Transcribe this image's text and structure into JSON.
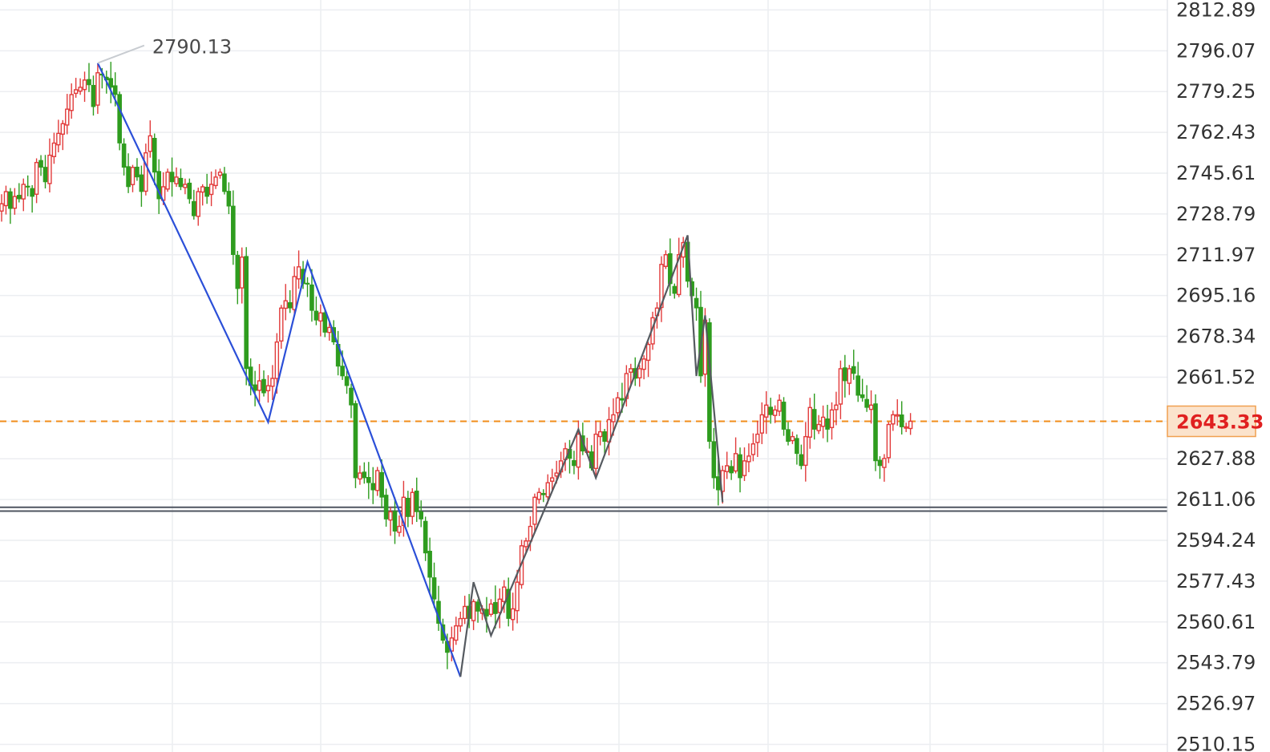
{
  "chart_data": {
    "type": "candlestick",
    "y_axis_ticks": [
      "2812.89",
      "2796.07",
      "2779.25",
      "2762.43",
      "2745.61",
      "2728.79",
      "2711.97",
      "2695.16",
      "2678.34",
      "2661.52",
      "2643.33",
      "2627.88",
      "2611.06",
      "2594.24",
      "2577.43",
      "2560.61",
      "2543.79",
      "2526.97",
      "2510.15"
    ],
    "ylim": [
      2507,
      2817
    ],
    "last_price": {
      "value": 2643.33,
      "label": "2643.33"
    },
    "peak_annotation": {
      "value": 2790.13,
      "label": "2790.13"
    },
    "horizontal_lines": [
      2607.9,
      2606.3
    ],
    "colors": {
      "up": "#e23b3b",
      "down": "#2e9c1e",
      "last_price": "#f08c1a",
      "blue_wave": "#2b4fd8",
      "gray_wave": "#555a60",
      "grid": "#eceef1"
    },
    "blue_wave_points": [
      {
        "bar": 22,
        "price": 2791
      },
      {
        "bar": 61,
        "price": 2643
      },
      {
        "bar": 70,
        "price": 2709
      },
      {
        "bar": 105,
        "price": 2538
      }
    ],
    "gray_wave_points": [
      {
        "bar": 105,
        "price": 2538
      },
      {
        "bar": 108,
        "price": 2577
      },
      {
        "bar": 112,
        "price": 2555
      },
      {
        "bar": 132,
        "price": 2640
      },
      {
        "bar": 136,
        "price": 2620
      },
      {
        "bar": 157,
        "price": 2720
      },
      {
        "bar": 159,
        "price": 2662
      },
      {
        "bar": 161,
        "price": 2687
      },
      {
        "bar": 165,
        "price": 2610
      }
    ],
    "closes": [
      2733,
      2738,
      2731,
      2736,
      2735,
      2741,
      2740,
      2736,
      2750,
      2748,
      2742,
      2753,
      2758,
      2762,
      2766,
      2772,
      2778,
      2780,
      2781,
      2784,
      2782,
      2773,
      2787,
      2786,
      2784,
      2781,
      2778,
      2758,
      2748,
      2740,
      2748,
      2744,
      2738,
      2754,
      2761,
      2746,
      2735,
      2740,
      2746,
      2742,
      2744,
      2740,
      2741,
      2735,
      2728,
      2738,
      2740,
      2736,
      2741,
      2744,
      2746,
      2738,
      2732,
      2712,
      2698,
      2711,
      2665,
      2658,
      2656,
      2660,
      2655,
      2658,
      2661,
      2676,
      2690,
      2693,
      2690,
      2703,
      2707,
      2700,
      2700,
      2689,
      2685,
      2688,
      2680,
      2682,
      2676,
      2666,
      2662,
      2658,
      2650,
      2620,
      2622,
      2620,
      2618,
      2615,
      2623,
      2612,
      2603,
      2606,
      2598,
      2600,
      2612,
      2604,
      2614,
      2606,
      2603,
      2589,
      2579,
      2570,
      2560,
      2553,
      2548,
      2554,
      2559,
      2562,
      2567,
      2562,
      2569,
      2565,
      2566,
      2563,
      2568,
      2564,
      2570,
      2575,
      2562,
      2566,
      2577,
      2592,
      2594,
      2600,
      2612,
      2614,
      2613,
      2618,
      2620,
      2622,
      2627,
      2632,
      2628,
      2625,
      2638,
      2631,
      2631,
      2624,
      2638,
      2639,
      2635,
      2644,
      2646,
      2653,
      2652,
      2663,
      2665,
      2661,
      2665,
      2669,
      2675,
      2686,
      2690,
      2708,
      2712,
      2700,
      2696,
      2712,
      2717,
      2701,
      2695,
      2690,
      2662,
      2685,
      2635,
      2620,
      2615,
      2623,
      2625,
      2622,
      2630,
      2620,
      2627,
      2629,
      2634,
      2638,
      2646,
      2650,
      2646,
      2648,
      2652,
      2640,
      2635,
      2637,
      2630,
      2625,
      2637,
      2649,
      2640,
      2642,
      2645,
      2640,
      2648,
      2650,
      2665,
      2660,
      2665,
      2663,
      2654,
      2653,
      2649,
      2650,
      2627,
      2625,
      2628,
      2642,
      2646,
      2646,
      2641,
      2641,
      2643.33
    ]
  }
}
